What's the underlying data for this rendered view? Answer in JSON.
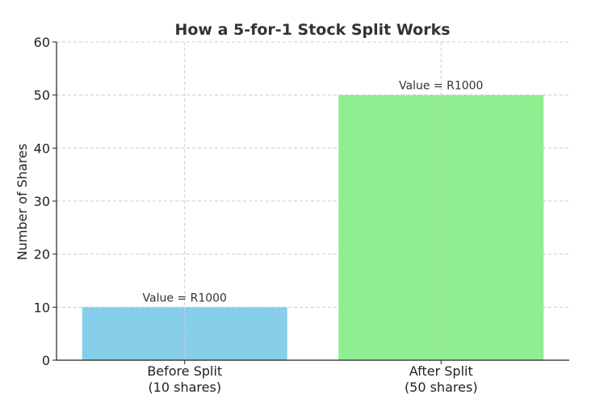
{
  "chart_data": {
    "type": "bar",
    "title": "How a 5-for-1 Stock Split Works",
    "xlabel": "",
    "ylabel": "Number of Shares",
    "ylim": [
      0,
      60
    ],
    "yticks": [
      0,
      10,
      20,
      30,
      40,
      50,
      60
    ],
    "grid": true,
    "categories": [
      [
        "Before Split",
        "(10 shares)"
      ],
      [
        "After Split",
        "(50 shares)"
      ]
    ],
    "values": [
      10,
      50
    ],
    "colors": [
      "#87ceeb",
      "#90ee90"
    ],
    "data_labels": [
      "Value = R1000",
      "Value = R1000"
    ]
  }
}
